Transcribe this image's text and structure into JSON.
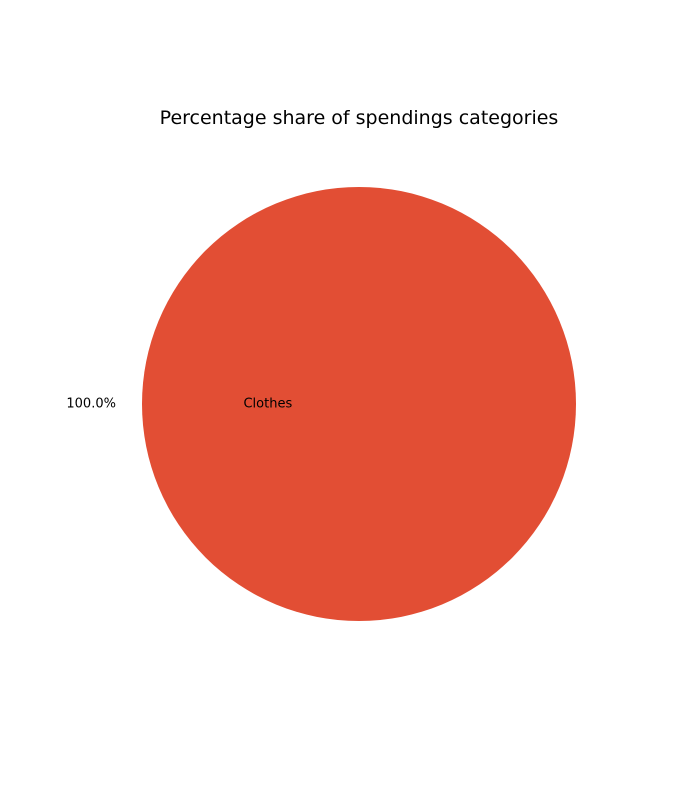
{
  "chart_data": {
    "type": "pie",
    "title": "Percentage share of spendings categories",
    "slices": [
      {
        "label": "Clothes",
        "value": 100.0,
        "percent_label": "100.0%",
        "color": "#E24E34"
      }
    ]
  }
}
